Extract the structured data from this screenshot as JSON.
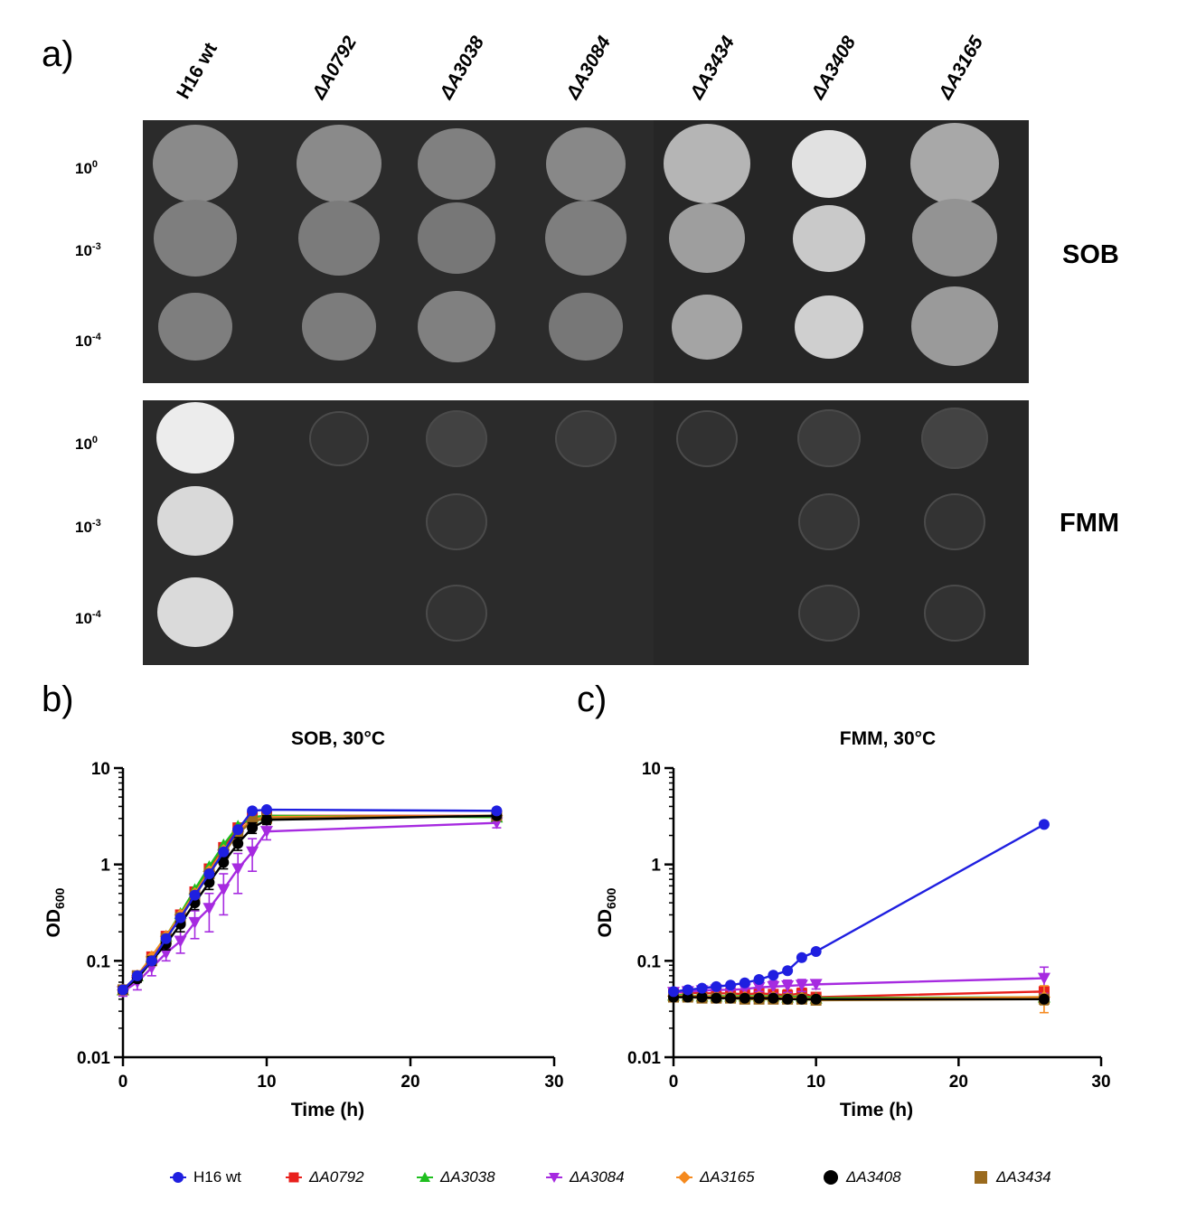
{
  "panel_a": {
    "letter": "a)",
    "strains": [
      {
        "label": "H16 wt",
        "italic": false
      },
      {
        "label": "ΔA0792",
        "italic": true
      },
      {
        "label": "ΔA3038",
        "italic": true
      },
      {
        "label": "ΔA3084",
        "italic": true
      },
      {
        "label": "ΔA3434",
        "italic": true
      },
      {
        "label": "ΔA3408",
        "italic": true
      },
      {
        "label": "ΔA3165",
        "italic": true
      }
    ],
    "dilutions": [
      {
        "base": "10",
        "exp": "0"
      },
      {
        "base": "10",
        "exp": "-3"
      },
      {
        "base": "10",
        "exp": "-4"
      }
    ],
    "media": [
      "SOB",
      "FMM"
    ]
  },
  "panel_b": {
    "letter": "b)"
  },
  "panel_c": {
    "letter": "c)"
  },
  "colors": {
    "H16 wt": "#1f1fe0",
    "ΔA0792": "#e8201c",
    "ΔA3038": "#1fbf1f",
    "ΔA3084": "#a62ae0",
    "ΔA3165": "#f58a1f",
    "ΔA3408": "#000000",
    "ΔA3434": "#9a6a1e"
  },
  "legend": [
    {
      "label": "H16 wt",
      "italic": false,
      "marker": "circle"
    },
    {
      "label": "ΔA0792",
      "italic": true,
      "marker": "square"
    },
    {
      "label": "ΔA3038",
      "italic": true,
      "marker": "triangle-up"
    },
    {
      "label": "ΔA3084",
      "italic": true,
      "marker": "triangle-down"
    },
    {
      "label": "ΔA3165",
      "italic": true,
      "marker": "diamond"
    },
    {
      "label": "ΔA3408",
      "italic": true,
      "marker": "circle"
    },
    {
      "label": "ΔA3434",
      "italic": true,
      "marker": "square"
    }
  ],
  "chart_data": [
    {
      "type": "line",
      "title": "SOB, 30°C",
      "xlabel": "Time (h)",
      "ylabel_main": "OD",
      "ylabel_sub": "600",
      "xlim": [
        0,
        30
      ],
      "ylim": [
        0.01,
        10
      ],
      "yscale": "log",
      "xticks": [
        0,
        10,
        20,
        30
      ],
      "yticks": [
        0.01,
        0.1,
        1,
        10
      ],
      "ytick_labels": [
        "0.01",
        "0.1",
        "1",
        "10"
      ],
      "series": [
        {
          "name": "H16 wt",
          "x": [
            0,
            1,
            2,
            3,
            4,
            5,
            6,
            7,
            8,
            9,
            10,
            26
          ],
          "y": [
            0.05,
            0.07,
            0.1,
            0.17,
            0.28,
            0.48,
            0.8,
            1.35,
            2.3,
            3.6,
            3.7,
            3.6
          ],
          "err": []
        },
        {
          "name": "ΔA0792",
          "x": [
            0,
            1,
            2,
            3,
            4,
            5,
            6,
            7,
            8,
            9,
            10,
            26
          ],
          "y": [
            0.05,
            0.07,
            0.11,
            0.18,
            0.3,
            0.52,
            0.9,
            1.5,
            2.4,
            3.1,
            3.2,
            3.2
          ],
          "err": []
        },
        {
          "name": "ΔA3038",
          "x": [
            0,
            1,
            2,
            3,
            4,
            5,
            6,
            7,
            8,
            9,
            10,
            26
          ],
          "y": [
            0.05,
            0.07,
            0.11,
            0.18,
            0.31,
            0.55,
            0.95,
            1.6,
            2.5,
            3.1,
            3.2,
            3.1
          ],
          "err": []
        },
        {
          "name": "ΔA3084",
          "x": [
            0,
            1,
            2,
            3,
            4,
            5,
            6,
            7,
            8,
            9,
            10,
            26
          ],
          "y": [
            0.048,
            0.06,
            0.085,
            0.12,
            0.16,
            0.25,
            0.35,
            0.55,
            0.9,
            1.35,
            2.2,
            2.7
          ],
          "err": [
            0.005,
            0.01,
            0.015,
            0.02,
            0.04,
            0.08,
            0.15,
            0.25,
            0.4,
            0.5,
            0.4,
            0.3
          ]
        },
        {
          "name": "ΔA3165",
          "x": [
            0,
            1,
            2,
            3,
            4,
            5,
            6,
            7,
            8,
            9,
            10,
            26
          ],
          "y": [
            0.05,
            0.07,
            0.11,
            0.18,
            0.3,
            0.5,
            0.85,
            1.4,
            2.2,
            2.9,
            3.1,
            3.2
          ],
          "err": []
        },
        {
          "name": "ΔA3408",
          "x": [
            0,
            1,
            2,
            3,
            4,
            5,
            6,
            7,
            8,
            9,
            10,
            26
          ],
          "y": [
            0.05,
            0.065,
            0.1,
            0.15,
            0.24,
            0.4,
            0.65,
            1.05,
            1.65,
            2.4,
            2.9,
            3.2
          ],
          "err": [
            0.004,
            0.005,
            0.01,
            0.02,
            0.04,
            0.06,
            0.1,
            0.15,
            0.25,
            0.3,
            0.3,
            0.2
          ]
        },
        {
          "name": "ΔA3434",
          "x": [
            0,
            1,
            2,
            3,
            4,
            5,
            6,
            7,
            8,
            9,
            10,
            26
          ],
          "y": [
            0.05,
            0.07,
            0.1,
            0.17,
            0.28,
            0.47,
            0.8,
            1.3,
            2.1,
            2.8,
            3.0,
            3.2
          ],
          "err": []
        }
      ]
    },
    {
      "type": "line",
      "title": "FMM, 30°C",
      "xlabel": "Time (h)",
      "ylabel_main": "OD",
      "ylabel_sub": "600",
      "xlim": [
        0,
        30
      ],
      "ylim": [
        0.01,
        10
      ],
      "yscale": "log",
      "xticks": [
        0,
        10,
        20,
        30
      ],
      "yticks": [
        0.01,
        0.1,
        1,
        10
      ],
      "ytick_labels": [
        "0.01",
        "0.1",
        "1",
        "10"
      ],
      "series": [
        {
          "name": "H16 wt",
          "x": [
            0,
            1,
            2,
            3,
            4,
            5,
            6,
            7,
            8,
            9,
            10,
            26
          ],
          "y": [
            0.048,
            0.05,
            0.052,
            0.054,
            0.056,
            0.059,
            0.064,
            0.071,
            0.079,
            0.108,
            0.125,
            2.6
          ],
          "err": []
        },
        {
          "name": "ΔA0792",
          "x": [
            0,
            1,
            2,
            3,
            4,
            5,
            6,
            7,
            8,
            9,
            10,
            26
          ],
          "y": [
            0.047,
            0.047,
            0.046,
            0.046,
            0.046,
            0.045,
            0.046,
            0.045,
            0.044,
            0.046,
            0.042,
            0.048
          ],
          "err": [
            0,
            0,
            0,
            0,
            0,
            0,
            0,
            0,
            0.006,
            0.006,
            0,
            0.004
          ]
        },
        {
          "name": "ΔA3038",
          "x": [
            0,
            1,
            2,
            3,
            4,
            5,
            6,
            7,
            8,
            9,
            10,
            26
          ],
          "y": [
            0.044,
            0.044,
            0.043,
            0.043,
            0.043,
            0.043,
            0.043,
            0.043,
            0.042,
            0.043,
            0.041,
            0.042
          ],
          "err": []
        },
        {
          "name": "ΔA3084",
          "x": [
            0,
            1,
            2,
            3,
            4,
            5,
            6,
            7,
            8,
            9,
            10,
            26
          ],
          "y": [
            0.047,
            0.048,
            0.049,
            0.05,
            0.05,
            0.051,
            0.053,
            0.054,
            0.055,
            0.056,
            0.057,
            0.066
          ],
          "err": [
            0,
            0,
            0,
            0,
            0,
            0,
            0.005,
            0.008,
            0.008,
            0.008,
            0.006,
            0.02
          ]
        },
        {
          "name": "ΔA3165",
          "x": [
            0,
            1,
            2,
            3,
            4,
            5,
            6,
            7,
            8,
            9,
            10,
            26
          ],
          "y": [
            0.043,
            0.043,
            0.043,
            0.042,
            0.042,
            0.042,
            0.042,
            0.042,
            0.041,
            0.041,
            0.04,
            0.042
          ],
          "err": [
            0,
            0,
            0,
            0,
            0,
            0,
            0,
            0,
            0,
            0,
            0,
            0.013
          ]
        },
        {
          "name": "ΔA3408",
          "x": [
            0,
            1,
            2,
            3,
            4,
            5,
            6,
            7,
            8,
            9,
            10,
            26
          ],
          "y": [
            0.042,
            0.042,
            0.042,
            0.041,
            0.041,
            0.041,
            0.041,
            0.041,
            0.04,
            0.04,
            0.04,
            0.04
          ],
          "err": []
        },
        {
          "name": "ΔA3434",
          "x": [
            0,
            1,
            2,
            3,
            4,
            5,
            6,
            7,
            8,
            9,
            10,
            26
          ],
          "y": [
            0.042,
            0.042,
            0.041,
            0.041,
            0.041,
            0.04,
            0.04,
            0.04,
            0.04,
            0.04,
            0.039,
            0.04
          ],
          "err": [
            0,
            0,
            0,
            0,
            0,
            0,
            0,
            0,
            0,
            0,
            0,
            0.005
          ]
        }
      ]
    }
  ]
}
